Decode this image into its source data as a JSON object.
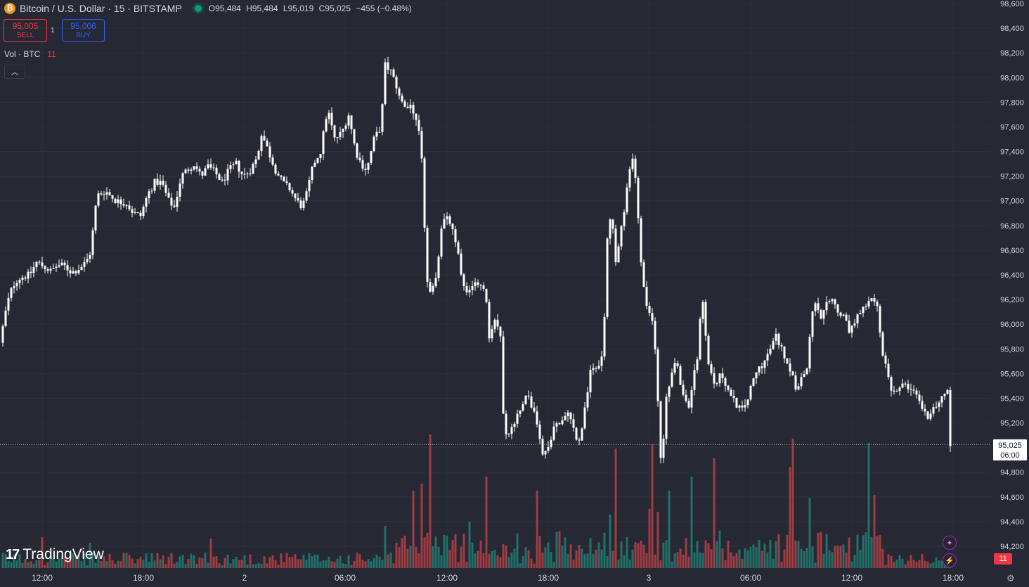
{
  "header": {
    "logo_glyph": "₿",
    "symbol": "Bitcoin / U.S. Dollar · 15 · BITSTAMP",
    "ohlc": {
      "open": "O95,484",
      "high": "H95,484",
      "low": "L95,019",
      "close": "C95,025",
      "change": "−455 (−0.48%)"
    },
    "status_color": "#089981"
  },
  "trade": {
    "sell_price": "95,005",
    "sell_label": "SELL",
    "buy_price": "95,006",
    "buy_label": "BUY",
    "spread": "1"
  },
  "volume_legend": {
    "label": "Vol · BTC",
    "value": "11"
  },
  "collapse_icon": "chevron-up-icon",
  "brand": {
    "mark": "17",
    "name": "TradingView"
  },
  "volume_badge": "11",
  "chart_data": {
    "type": "candlestick",
    "symbol": "BTCUSD",
    "interval_minutes": 15,
    "y_ticks": [
      94200,
      94400,
      94600,
      94800,
      95000,
      95200,
      95400,
      95600,
      95800,
      96000,
      96200,
      96400,
      96600,
      96800,
      97000,
      97200,
      97400,
      97600,
      97800,
      98000,
      98200,
      98400,
      98600
    ],
    "ylim": [
      94100,
      98650
    ],
    "x_ticks": [
      "12:00",
      "18:00",
      "2",
      "06:00",
      "12:00",
      "18:00",
      "3",
      "06:00",
      "12:00",
      "18:00"
    ],
    "last_price": "95,025",
    "countdown": "06:00",
    "colors": {
      "up": "#ffffff",
      "down": "#ffffff",
      "vol_up": "#22706a",
      "vol_down": "#a03c42",
      "bg": "#262933"
    },
    "close_path": [
      [
        0,
        95850
      ],
      [
        8,
        96100
      ],
      [
        14,
        96250
      ],
      [
        22,
        96350
      ],
      [
        30,
        96380
      ],
      [
        42,
        96400
      ],
      [
        52,
        96500
      ],
      [
        62,
        96470
      ],
      [
        72,
        96430
      ],
      [
        82,
        96480
      ],
      [
        92,
        96470
      ],
      [
        102,
        96420
      ],
      [
        112,
        96450
      ],
      [
        122,
        96500
      ],
      [
        130,
        96600
      ],
      [
        134,
        96900
      ],
      [
        140,
        97050
      ],
      [
        150,
        97080
      ],
      [
        165,
        97000
      ],
      [
        180,
        96980
      ],
      [
        190,
        96900
      ],
      [
        200,
        96880
      ],
      [
        210,
        97050
      ],
      [
        220,
        97150
      ],
      [
        230,
        97150
      ],
      [
        240,
        97000
      ],
      [
        248,
        96950
      ],
      [
        258,
        97200
      ],
      [
        266,
        97250
      ],
      [
        276,
        97300
      ],
      [
        286,
        97200
      ],
      [
        296,
        97280
      ],
      [
        306,
        97230
      ],
      [
        316,
        97150
      ],
      [
        326,
        97250
      ],
      [
        336,
        97300
      ],
      [
        346,
        97200
      ],
      [
        356,
        97250
      ],
      [
        366,
        97350
      ],
      [
        372,
        97550
      ],
      [
        382,
        97400
      ],
      [
        392,
        97250
      ],
      [
        402,
        97150
      ],
      [
        412,
        97100
      ],
      [
        422,
        97000
      ],
      [
        430,
        96950
      ],
      [
        436,
        97050
      ],
      [
        446,
        97300
      ],
      [
        456,
        97400
      ],
      [
        466,
        97750
      ],
      [
        476,
        97500
      ],
      [
        486,
        97550
      ],
      [
        496,
        97700
      ],
      [
        506,
        97400
      ],
      [
        514,
        97300
      ],
      [
        522,
        97250
      ],
      [
        532,
        97500
      ],
      [
        542,
        97600
      ],
      [
        548,
        98100
      ],
      [
        556,
        98050
      ],
      [
        566,
        97900
      ],
      [
        576,
        97750
      ],
      [
        586,
        97750
      ],
      [
        596,
        97550
      ],
      [
        602,
        97200
      ],
      [
        606,
        96400
      ],
      [
        612,
        96250
      ],
      [
        620,
        96350
      ],
      [
        628,
        96800
      ],
      [
        636,
        96900
      ],
      [
        644,
        96750
      ],
      [
        652,
        96550
      ],
      [
        660,
        96300
      ],
      [
        668,
        96250
      ],
      [
        680,
        96350
      ],
      [
        690,
        96300
      ],
      [
        696,
        95900
      ],
      [
        704,
        96050
      ],
      [
        712,
        95900
      ],
      [
        716,
        95300
      ],
      [
        722,
        95050
      ],
      [
        730,
        95200
      ],
      [
        740,
        95300
      ],
      [
        748,
        95450
      ],
      [
        756,
        95350
      ],
      [
        764,
        95200
      ],
      [
        772,
        94950
      ],
      [
        780,
        95000
      ],
      [
        790,
        95200
      ],
      [
        800,
        95200
      ],
      [
        810,
        95300
      ],
      [
        818,
        95100
      ],
      [
        826,
        95050
      ],
      [
        832,
        95350
      ],
      [
        840,
        95600
      ],
      [
        850,
        95650
      ],
      [
        858,
        95750
      ],
      [
        864,
        96700
      ],
      [
        870,
        96900
      ],
      [
        876,
        96500
      ],
      [
        882,
        96700
      ],
      [
        888,
        96900
      ],
      [
        894,
        97200
      ],
      [
        900,
        97350
      ],
      [
        906,
        97150
      ],
      [
        910,
        96600
      ],
      [
        916,
        96300
      ],
      [
        922,
        96100
      ],
      [
        930,
        96000
      ],
      [
        936,
        95400
      ],
      [
        942,
        94700
      ],
      [
        946,
        95400
      ],
      [
        952,
        95500
      ],
      [
        960,
        95700
      ],
      [
        966,
        95600
      ],
      [
        972,
        95400
      ],
      [
        980,
        95350
      ],
      [
        988,
        95600
      ],
      [
        994,
        95750
      ],
      [
        998,
        96300
      ],
      [
        1004,
        95900
      ],
      [
        1010,
        95600
      ],
      [
        1018,
        95500
      ],
      [
        1026,
        95600
      ],
      [
        1034,
        95500
      ],
      [
        1040,
        95400
      ],
      [
        1048,
        95350
      ],
      [
        1056,
        95300
      ],
      [
        1064,
        95400
      ],
      [
        1072,
        95550
      ],
      [
        1080,
        95650
      ],
      [
        1088,
        95700
      ],
      [
        1096,
        95800
      ],
      [
        1104,
        95900
      ],
      [
        1112,
        95800
      ],
      [
        1120,
        95700
      ],
      [
        1126,
        95600
      ],
      [
        1132,
        95500
      ],
      [
        1140,
        95550
      ],
      [
        1148,
        95650
      ],
      [
        1154,
        96050
      ],
      [
        1160,
        96150
      ],
      [
        1168,
        96050
      ],
      [
        1176,
        96150
      ],
      [
        1184,
        96200
      ],
      [
        1192,
        96100
      ],
      [
        1200,
        96050
      ],
      [
        1208,
        95950
      ],
      [
        1216,
        96000
      ],
      [
        1224,
        96100
      ],
      [
        1232,
        96150
      ],
      [
        1240,
        96200
      ],
      [
        1248,
        96150
      ],
      [
        1254,
        95800
      ],
      [
        1262,
        95600
      ],
      [
        1270,
        95450
      ],
      [
        1278,
        95500
      ],
      [
        1286,
        95500
      ],
      [
        1294,
        95450
      ],
      [
        1302,
        95450
      ],
      [
        1310,
        95350
      ],
      [
        1318,
        95250
      ],
      [
        1326,
        95300
      ],
      [
        1334,
        95350
      ],
      [
        1342,
        95400
      ],
      [
        1348,
        95480
      ],
      [
        1352,
        95025
      ]
    ],
    "volume_spikes": [
      [
        612,
        0.95
      ],
      [
        600,
        0.6
      ],
      [
        606,
        0.25
      ],
      [
        586,
        0.55
      ],
      [
        690,
        0.65
      ],
      [
        762,
        0.55
      ],
      [
        876,
        0.85
      ],
      [
        928,
        0.88
      ],
      [
        936,
        0.4
      ],
      [
        950,
        0.55
      ],
      [
        984,
        0.65
      ],
      [
        1014,
        0.78
      ],
      [
        1128,
        0.92
      ],
      [
        1122,
        0.72
      ],
      [
        1236,
        0.89
      ],
      [
        1242,
        0.52
      ],
      [
        1152,
        0.5
      ],
      [
        866,
        0.38
      ],
      [
        922,
        0.42
      ],
      [
        668,
        0.33
      ],
      [
        546,
        0.3
      ],
      [
        58,
        0.22
      ],
      [
        300,
        0.21
      ],
      [
        128,
        0.18
      ]
    ]
  }
}
